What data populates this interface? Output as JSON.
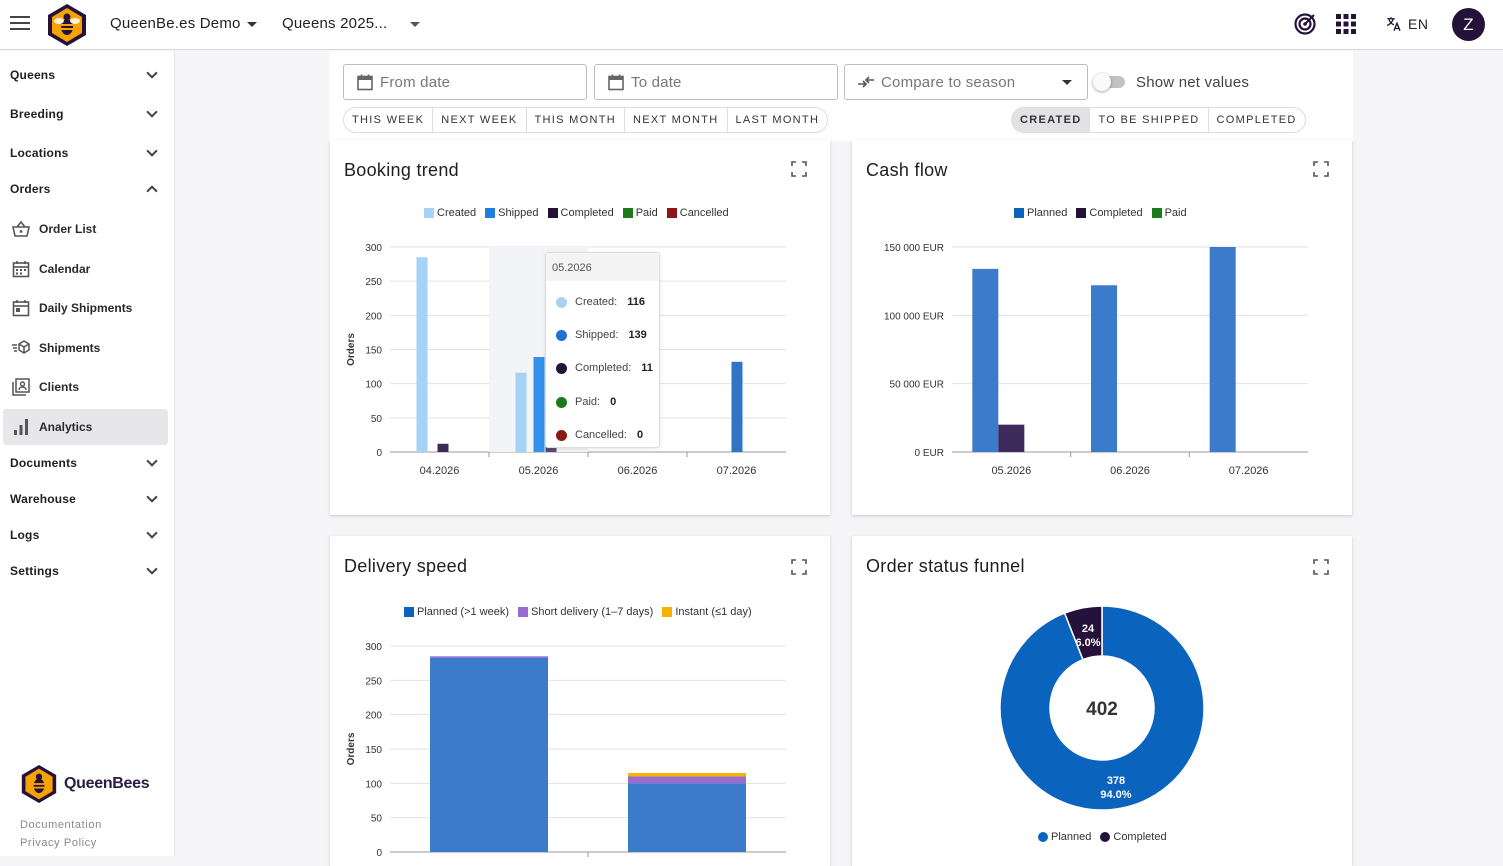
{
  "header": {
    "org": "QueenBe.es Demo",
    "season": "Queens 2025...",
    "language": "EN",
    "avatar_letter": "Z"
  },
  "sidebar": {
    "groups": [
      {
        "label": "Queens"
      },
      {
        "label": "Breeding"
      },
      {
        "label": "Locations"
      },
      {
        "label": "Orders"
      },
      {
        "label": "Documents"
      },
      {
        "label": "Warehouse"
      },
      {
        "label": "Logs"
      },
      {
        "label": "Settings"
      }
    ],
    "order_items": [
      {
        "label": "Order List",
        "icon": "basket-icon"
      },
      {
        "label": "Calendar",
        "icon": "calendar-icon"
      },
      {
        "label": "Daily Shipments",
        "icon": "calendar-day-icon"
      },
      {
        "label": "Shipments",
        "icon": "shipping-box-icon"
      },
      {
        "label": "Clients",
        "icon": "contacts-icon"
      },
      {
        "label": "Analytics",
        "icon": "bar-chart-icon"
      }
    ],
    "active_item": "Analytics",
    "brand": "QueenBees",
    "links": [
      "Documentation",
      "Privacy Policy"
    ]
  },
  "filters": {
    "from_placeholder": "From date",
    "to_placeholder": "To date",
    "compare_placeholder": "Compare to season",
    "net_values_label": "Show net values",
    "net_values_on": false,
    "ranges": [
      "THIS WEEK",
      "NEXT WEEK",
      "THIS MONTH",
      "NEXT MONTH",
      "LAST MONTH"
    ],
    "status_tabs": [
      "CREATED",
      "TO BE SHIPPED",
      "COMPLETED"
    ],
    "active_status": "CREATED"
  },
  "colors": {
    "created": "#a6d3f5",
    "shipped": "#1e7fe0",
    "completed": "#24123a",
    "paid": "#1b7a1b",
    "cancelled": "#8e1616",
    "planned": "#3b7bca",
    "short": "#9b6bd3",
    "instant": "#f5b400",
    "funnel_planned": "#0a63bd",
    "funnel_completed": "#24123a"
  },
  "cards": {
    "booking": {
      "title": "Booking trend",
      "legend": [
        "Created",
        "Shipped",
        "Completed",
        "Paid",
        "Cancelled"
      ],
      "ylabel": "Orders",
      "yticks": [
        "300",
        "250",
        "200",
        "150",
        "100",
        "50",
        "0"
      ],
      "tooltip": {
        "title": "05.2026",
        "rows": [
          {
            "label": "Created:",
            "value": "116"
          },
          {
            "label": "Shipped:",
            "value": "139"
          },
          {
            "label": "Completed:",
            "value": "11"
          },
          {
            "label": "Paid:",
            "value": "0"
          },
          {
            "label": "Cancelled:",
            "value": "0"
          }
        ]
      }
    },
    "cashflow": {
      "title": "Cash flow",
      "legend": [
        "Planned",
        "Completed",
        "Paid"
      ],
      "yticks": [
        "150 000 EUR",
        "100 000 EUR",
        "50 000 EUR",
        "0 EUR"
      ]
    },
    "delivery": {
      "title": "Delivery speed",
      "legend": [
        "Planned (>1 week)",
        "Short delivery (1–7 days)",
        "Instant (≤1 day)"
      ],
      "ylabel": "Orders",
      "yticks": [
        "300",
        "250",
        "200",
        "150",
        "100",
        "50",
        "0"
      ]
    },
    "funnel": {
      "title": "Order status funnel",
      "legend": [
        "Planned",
        "Completed"
      ]
    }
  },
  "chart_data": [
    {
      "type": "bar",
      "title": "Booking trend",
      "ylabel": "Orders",
      "ylim": [
        0,
        300
      ],
      "categories": [
        "04.2026",
        "05.2026",
        "06.2026",
        "07.2026"
      ],
      "series": [
        {
          "name": "Created",
          "values": [
            285,
            116,
            0,
            0
          ]
        },
        {
          "name": "Shipped",
          "values": [
            0,
            139,
            0,
            132
          ]
        },
        {
          "name": "Completed",
          "values": [
            12,
            11,
            0,
            0
          ]
        },
        {
          "name": "Paid",
          "values": [
            0,
            0,
            0,
            0
          ]
        },
        {
          "name": "Cancelled",
          "values": [
            0,
            0,
            0,
            0
          ]
        }
      ],
      "legend": "top"
    },
    {
      "type": "bar",
      "title": "Cash flow",
      "ylim": [
        0,
        150000
      ],
      "categories": [
        "05.2026",
        "06.2026",
        "07.2026"
      ],
      "series": [
        {
          "name": "Planned",
          "values": [
            134000,
            122000,
            150000
          ]
        },
        {
          "name": "Completed",
          "values": [
            20000,
            0,
            0
          ]
        },
        {
          "name": "Paid",
          "values": [
            0,
            0,
            0
          ]
        }
      ],
      "legend": "top"
    },
    {
      "type": "bar",
      "title": "Delivery speed",
      "ylabel": "Orders",
      "ylim": [
        0,
        300
      ],
      "stacked": true,
      "categories": [
        "",
        ""
      ],
      "series": [
        {
          "name": "Planned (>1 week)",
          "values": [
            283,
            100
          ]
        },
        {
          "name": "Short delivery (1–7 days)",
          "values": [
            2,
            10
          ]
        },
        {
          "name": "Instant (≤1 day)",
          "values": [
            0,
            5
          ]
        }
      ],
      "legend": "top"
    },
    {
      "type": "pie",
      "title": "Order status funnel",
      "center_label": "402",
      "slices": [
        {
          "name": "Planned",
          "value": 378,
          "label": "378",
          "percent": "94.0%"
        },
        {
          "name": "Completed",
          "value": 24,
          "label": "24",
          "percent": "6.0%"
        }
      ],
      "legend": "bottom"
    }
  ]
}
